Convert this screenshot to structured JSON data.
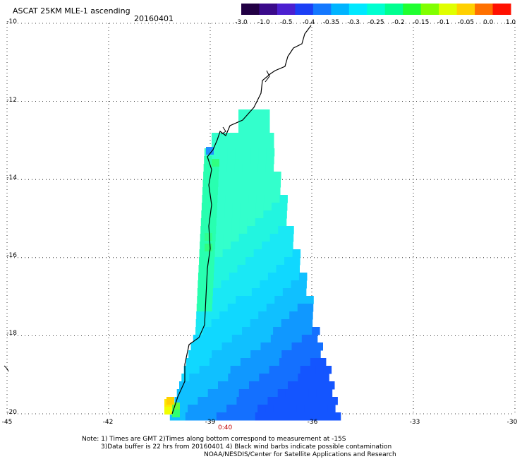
{
  "header": {
    "title": "ASCAT 25KM MLE-1 ascending",
    "date": "20160401"
  },
  "colorbar": {
    "colors": [
      "#220044",
      "#3a0a8a",
      "#4b1fd0",
      "#1b3ff5",
      "#1478ff",
      "#00b4ff",
      "#00e8ff",
      "#00ffd0",
      "#00ff90",
      "#20ff30",
      "#80ff00",
      "#e0ff00",
      "#ffd000",
      "#ff7000",
      "#ff1000"
    ],
    "tick_labels": [
      "-3.0",
      "-1.0",
      "-0.5",
      "-0.4",
      "-0.35",
      "-0.3",
      "-0.25",
      "-0.2",
      "-0.15",
      "-0.1",
      "-0.05",
      "0.0",
      "1.0"
    ]
  },
  "axes": {
    "lat_labels": [
      "-10",
      "-12",
      "-14",
      "-16",
      "-18",
      "-20"
    ],
    "lon_labels": [
      "-45",
      "-42",
      "-39",
      "-36",
      "-33",
      "-30"
    ],
    "lat_values": [
      -10,
      -12,
      -14,
      -16,
      -18,
      -20
    ],
    "lon_values": [
      -45,
      -42,
      -39,
      -36,
      -33,
      -30
    ]
  },
  "swath": {
    "time_label": "0:40"
  },
  "notes": {
    "line1": "Note: 1) Times are GMT 2)Times along bottom correspond to measurement at -15S",
    "line2": "3)Data buffer is 22 hrs from 20160401 4) Black wind barbs indicate possible contamination",
    "line3": "NOAA/NESDIS/Center for Satellite Applications and Research"
  }
}
